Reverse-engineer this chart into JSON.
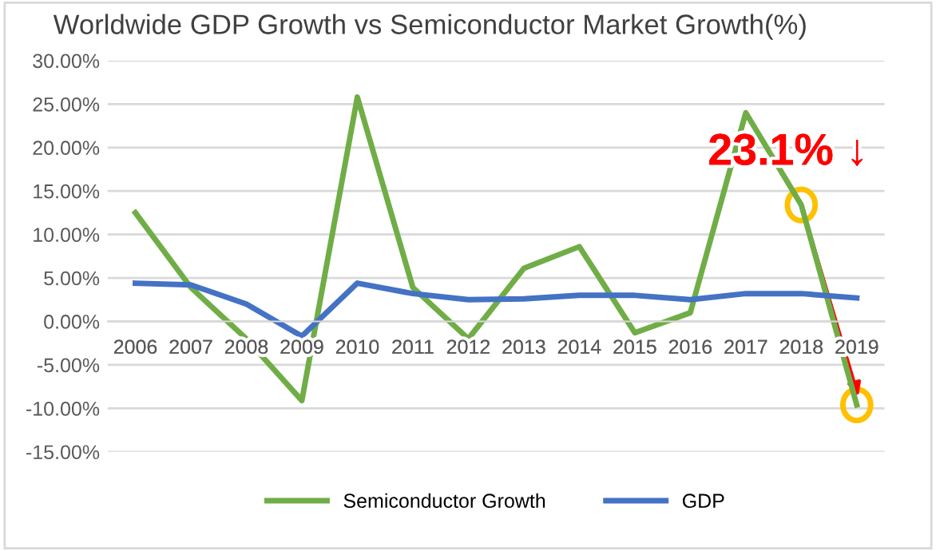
{
  "chart_data": {
    "type": "line",
    "title": "Worldwide GDP Growth vs Semiconductor Market Growth(%)",
    "categories": [
      "2006",
      "2007",
      "2008",
      "2009",
      "2010",
      "2011",
      "2012",
      "2013",
      "2014",
      "2015",
      "2016",
      "2017",
      "2018",
      "2019"
    ],
    "series": [
      {
        "name": "Semiconductor Growth",
        "color": "#70ad47",
        "values": [
          12.5,
          3.9,
          -2.0,
          -9.1,
          25.8,
          3.9,
          -2.0,
          6.1,
          8.6,
          -1.3,
          1.0,
          24.0,
          13.4,
          -9.6
        ]
      },
      {
        "name": "GDP",
        "color": "#4472c4",
        "values": [
          4.4,
          4.2,
          2.0,
          -1.7,
          4.4,
          3.2,
          2.5,
          2.6,
          3.0,
          3.0,
          2.5,
          3.2,
          3.2,
          2.7
        ]
      }
    ],
    "ylim": [
      -15,
      30
    ],
    "yticks": [
      {
        "value": -15,
        "label": "-15.00%"
      },
      {
        "value": -10,
        "label": "-10.00%"
      },
      {
        "value": -5,
        "label": "-5.00%"
      },
      {
        "value": 0,
        "label": "0.00%"
      },
      {
        "value": 5,
        "label": "5.00%"
      },
      {
        "value": 10,
        "label": "10.00%"
      },
      {
        "value": 15,
        "label": "15.00%"
      },
      {
        "value": 20,
        "label": "20.00%"
      },
      {
        "value": 25,
        "label": "25.00%"
      },
      {
        "value": 30,
        "label": "30.00%"
      }
    ],
    "grid": "y",
    "legend": "bottom",
    "marker": "none",
    "line_style": "solid",
    "annotations": [
      {
        "text": "23.1% ↓",
        "x": "2018",
        "y": 13.4
      }
    ]
  }
}
